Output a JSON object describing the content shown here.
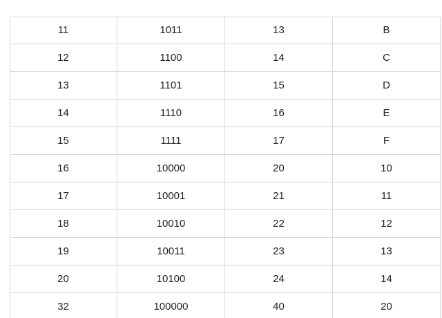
{
  "table": {
    "rows": [
      [
        "11",
        "1011",
        "13",
        "B"
      ],
      [
        "12",
        "1100",
        "14",
        "C"
      ],
      [
        "13",
        "1101",
        "15",
        "D"
      ],
      [
        "14",
        "1110",
        "16",
        "E"
      ],
      [
        "15",
        "1111",
        "17",
        "F"
      ],
      [
        "16",
        "10000",
        "20",
        "10"
      ],
      [
        "17",
        "10001",
        "21",
        "11"
      ],
      [
        "18",
        "10010",
        "22",
        "12"
      ],
      [
        "19",
        "10011",
        "23",
        "13"
      ],
      [
        "20",
        "10100",
        "24",
        "14"
      ],
      [
        "32",
        "100000",
        "40",
        "20"
      ]
    ]
  }
}
